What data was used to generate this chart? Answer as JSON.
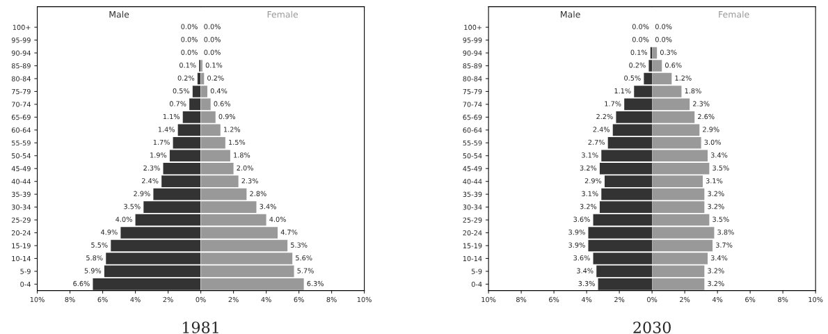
{
  "chart_data": [
    {
      "type": "bar",
      "orientation": "horizontal",
      "title": "1981",
      "categories": [
        "100+",
        "95-99",
        "90-94",
        "85-89",
        "80-84",
        "75-79",
        "70-74",
        "65-69",
        "60-64",
        "55-59",
        "50-54",
        "45-49",
        "40-44",
        "35-39",
        "30-34",
        "25-29",
        "20-24",
        "15-19",
        "10-14",
        "5-9",
        "0-4"
      ],
      "series": [
        {
          "name": "Male",
          "color": "#333333",
          "values": [
            0.0,
            0.0,
            0.0,
            0.1,
            0.2,
            0.5,
            0.7,
            1.1,
            1.4,
            1.7,
            1.9,
            2.3,
            2.4,
            2.9,
            3.5,
            4.0,
            4.9,
            5.5,
            5.8,
            5.9,
            6.6
          ],
          "value_labels": [
            "0.0%",
            "0.0%",
            "0.0%",
            "0.1%",
            "0.2%",
            "0.5%",
            "0.7%",
            "1.1%",
            "1.4%",
            "1.7%",
            "1.9%",
            "2.3%",
            "2.4%",
            "2.9%",
            "3.5%",
            "4.0%",
            "4.9%",
            "5.5%",
            "5.8%",
            "5.9%",
            "6.6%"
          ]
        }
      ],
      "xlim": [
        10,
        0
      ],
      "xticks": [
        {
          "value": 10,
          "label": "10%"
        },
        {
          "value": 8,
          "label": "8%"
        },
        {
          "value": 6,
          "label": "6%"
        },
        {
          "value": 4,
          "label": "4%"
        },
        {
          "value": 2,
          "label": "2%"
        },
        {
          "value": 0,
          "label": "0%"
        }
      ],
      "grid": false
    },
    {
      "type": "bar",
      "orientation": "horizontal",
      "tick_labels": "x",
      "categories": [
        null,
        null,
        null,
        null,
        null,
        null,
        null,
        null,
        null,
        null,
        null,
        null,
        null,
        null,
        null,
        null,
        null,
        null,
        null,
        null,
        null
      ],
      "series": [
        {
          "name": "Female",
          "color": "#999999",
          "values": [
            0.0,
            0.0,
            0.0,
            0.1,
            0.2,
            0.4,
            0.6,
            0.9,
            1.2,
            1.5,
            1.8,
            2.0,
            2.3,
            2.8,
            3.4,
            4.0,
            4.7,
            5.3,
            5.6,
            5.7,
            6.3
          ],
          "value_labels": [
            "0.0%",
            "0.0%",
            "0.0%",
            "0.1%",
            "0.2%",
            "0.4%",
            "0.6%",
            "0.9%",
            "1.2%",
            "1.5%",
            "1.8%",
            "2.0%",
            "2.3%",
            "2.8%",
            "3.4%",
            "4.0%",
            "4.7%",
            "5.3%",
            "5.6%",
            "5.7%",
            "6.3%"
          ]
        }
      ],
      "xlim": [
        0,
        10
      ],
      "xticks": [
        {
          "value": 2,
          "label": "2%"
        },
        {
          "value": 4,
          "label": "4%"
        },
        {
          "value": 6,
          "label": "6%"
        },
        {
          "value": 8,
          "label": "8%"
        },
        {
          "value": 10,
          "label": "10%"
        }
      ],
      "grid": false
    },
    {
      "type": "bar",
      "orientation": "horizontal",
      "title": "2030",
      "categories": [
        "100+",
        "95-99",
        "90-94",
        "85-89",
        "80-84",
        "75-79",
        "70-74",
        "65-69",
        "60-64",
        "55-59",
        "50-54",
        "45-49",
        "40-44",
        "35-39",
        "30-34",
        "25-29",
        "20-24",
        "15-19",
        "10-14",
        "5-9",
        "0-4"
      ],
      "series": [
        {
          "name": "Male",
          "color": "#333333",
          "values": [
            0.0,
            0.0,
            0.1,
            0.2,
            0.5,
            1.1,
            1.7,
            2.2,
            2.4,
            2.7,
            3.1,
            3.2,
            2.9,
            3.1,
            3.2,
            3.6,
            3.9,
            3.9,
            3.6,
            3.4,
            3.3
          ],
          "value_labels": [
            "0.0%",
            "0.0%",
            "0.1%",
            "0.2%",
            "0.5%",
            "1.1%",
            "1.7%",
            "2.2%",
            "2.4%",
            "2.7%",
            "3.1%",
            "3.2%",
            "2.9%",
            "3.1%",
            "3.2%",
            "3.6%",
            "3.9%",
            "3.9%",
            "3.6%",
            "3.4%",
            "3.3%"
          ]
        }
      ],
      "xlim": [
        10,
        0
      ],
      "xticks": [
        {
          "value": 10,
          "label": "10%"
        },
        {
          "value": 8,
          "label": "8%"
        },
        {
          "value": 6,
          "label": "6%"
        },
        {
          "value": 4,
          "label": "4%"
        },
        {
          "value": 2,
          "label": "2%"
        },
        {
          "value": 0,
          "label": "0%"
        }
      ],
      "grid": false
    },
    {
      "type": "bar",
      "orientation": "horizontal",
      "tick_labels": "x",
      "categories": [
        null,
        null,
        null,
        null,
        null,
        null,
        null,
        null,
        null,
        null,
        null,
        null,
        null,
        null,
        null,
        null,
        null,
        null,
        null,
        null,
        null
      ],
      "series": [
        {
          "name": "Female",
          "color": "#999999",
          "values": [
            0.0,
            0.0,
            0.3,
            0.6,
            1.2,
            1.8,
            2.3,
            2.6,
            2.9,
            3.0,
            3.4,
            3.5,
            3.1,
            3.2,
            3.2,
            3.5,
            3.8,
            3.7,
            3.4,
            3.2,
            3.2
          ],
          "value_labels": [
            "0.0%",
            "0.0%",
            "0.3%",
            "0.6%",
            "1.2%",
            "1.8%",
            "2.3%",
            "2.6%",
            "2.9%",
            "3.0%",
            "3.4%",
            "3.5%",
            "3.1%",
            "3.2%",
            "3.2%",
            "3.5%",
            "3.8%",
            "3.7%",
            "3.4%",
            "3.2%",
            "3.2%"
          ]
        }
      ],
      "xlim": [
        0,
        10
      ],
      "xticks": [
        {
          "value": 2,
          "label": "2%"
        },
        {
          "value": 4,
          "label": "4%"
        },
        {
          "value": 6,
          "label": "6%"
        },
        {
          "value": 8,
          "label": "8%"
        },
        {
          "value": 10,
          "label": "10%"
        }
      ],
      "grid": false
    }
  ]
}
